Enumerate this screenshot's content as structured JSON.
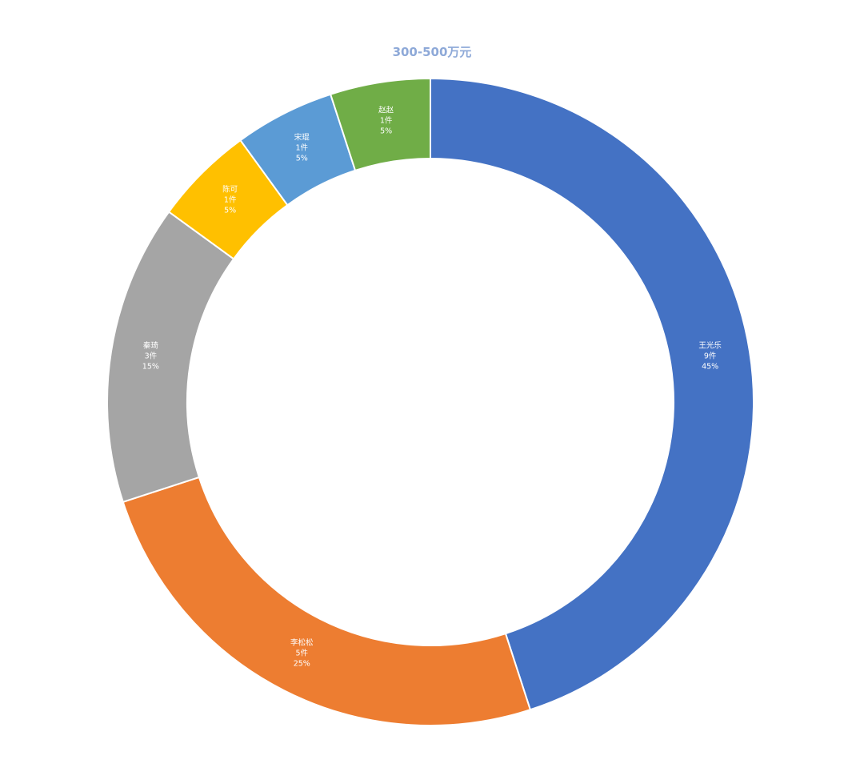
{
  "chart_data": {
    "type": "pie",
    "variant": "donut",
    "title": "300-500万元",
    "series": [
      {
        "name": "王光乐",
        "count_label": "9件",
        "value": 9,
        "percent_label": "45%",
        "color": "#4472C4"
      },
      {
        "name": "李松松",
        "count_label": "5件",
        "value": 5,
        "percent_label": "25%",
        "color": "#ED7D31"
      },
      {
        "name": "秦琦",
        "count_label": "3件",
        "value": 3,
        "percent_label": "15%",
        "color": "#A5A5A5"
      },
      {
        "name": "陈可",
        "count_label": "1件",
        "value": 1,
        "percent_label": "5%",
        "color": "#FFC000"
      },
      {
        "name": "宋琨",
        "count_label": "1件",
        "value": 1,
        "percent_label": "5%",
        "color": "#5B9BD5"
      },
      {
        "name": "赵赵",
        "count_label": "1件",
        "value": 1,
        "percent_label": "5%",
        "color": "#70AD47"
      }
    ],
    "legend": "none"
  }
}
